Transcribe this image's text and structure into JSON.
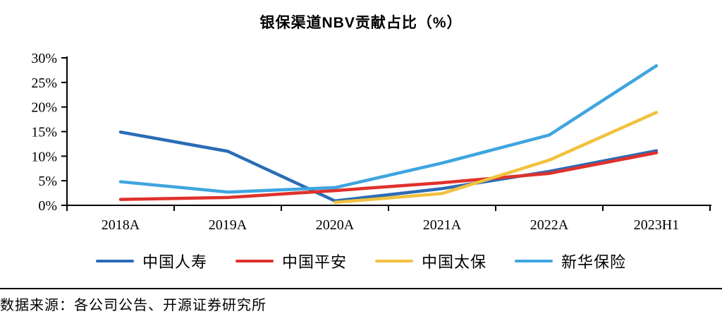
{
  "chart_data": {
    "type": "line",
    "title": "银保渠道NBV贡献占比（%）",
    "categories": [
      "2018A",
      "2019A",
      "2020A",
      "2021A",
      "2022A",
      "2023H1"
    ],
    "y_ticks": [
      0,
      5,
      10,
      15,
      20,
      25,
      30
    ],
    "y_tick_suffix": "%",
    "ylim": [
      0,
      30
    ],
    "grid": false,
    "legend_position": "bottom",
    "series": [
      {
        "name": "中国人寿",
        "color": "#2B6CB5",
        "values": [
          14.9,
          11.0,
          0.9,
          3.4,
          6.9,
          11.1
        ]
      },
      {
        "name": "中国平安",
        "color": "#E0312B",
        "values": [
          1.2,
          1.6,
          3.0,
          4.6,
          6.5,
          10.7
        ]
      },
      {
        "name": "中国太保",
        "color": "#F1C23E",
        "values": [
          null,
          null,
          0.6,
          2.4,
          9.2,
          18.9
        ]
      },
      {
        "name": "新华保险",
        "color": "#3FA5DE",
        "values": [
          4.8,
          2.7,
          3.6,
          8.6,
          14.3,
          28.4
        ]
      }
    ]
  },
  "source_note": "数据来源：各公司公告、开源证券研究所"
}
